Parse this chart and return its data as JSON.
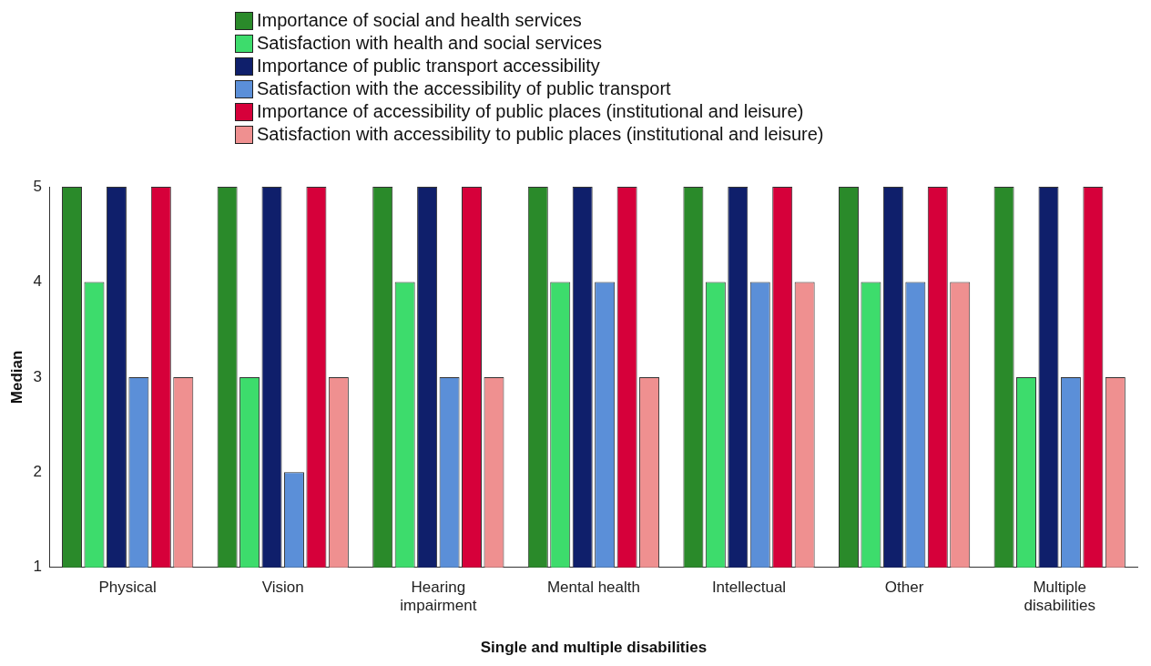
{
  "chart_data": {
    "type": "bar",
    "xlabel": "Single and multiple disabilities",
    "ylabel": "Median",
    "categories": [
      "Physical",
      "Vision",
      "Hearing impairment",
      "Mental health",
      "Intellectual",
      "Other",
      "Multiple disabilities"
    ],
    "series": [
      {
        "name": "Importance of social and health services",
        "color": "#2a8a2a",
        "values": [
          5,
          5,
          5,
          5,
          5,
          5,
          5
        ]
      },
      {
        "name": "Satisfaction with health and social services",
        "color": "#3ddc6c",
        "values": [
          4,
          3,
          4,
          4,
          4,
          4,
          3
        ]
      },
      {
        "name": "Importance of public transport accessibility",
        "color": "#0f1f6b",
        "values": [
          5,
          5,
          5,
          5,
          5,
          5,
          5
        ]
      },
      {
        "name": "Satisfaction with the accessibility of public transport",
        "color": "#5b8fd8",
        "values": [
          3,
          2,
          3,
          4,
          4,
          4,
          3
        ]
      },
      {
        "name": "Importance of accessibility of public places (institutional and leisure)",
        "color": "#d6003a",
        "values": [
          5,
          5,
          5,
          5,
          5,
          5,
          5
        ]
      },
      {
        "name": "Satisfaction with accessibility to public places (institutional and leisure)",
        "color": "#ef9090",
        "values": [
          3,
          3,
          3,
          3,
          4,
          4,
          3
        ]
      }
    ],
    "ylim": [
      1,
      5
    ],
    "yticks": [
      1,
      2,
      3,
      4,
      5
    ],
    "grid": false,
    "legend": "top"
  }
}
